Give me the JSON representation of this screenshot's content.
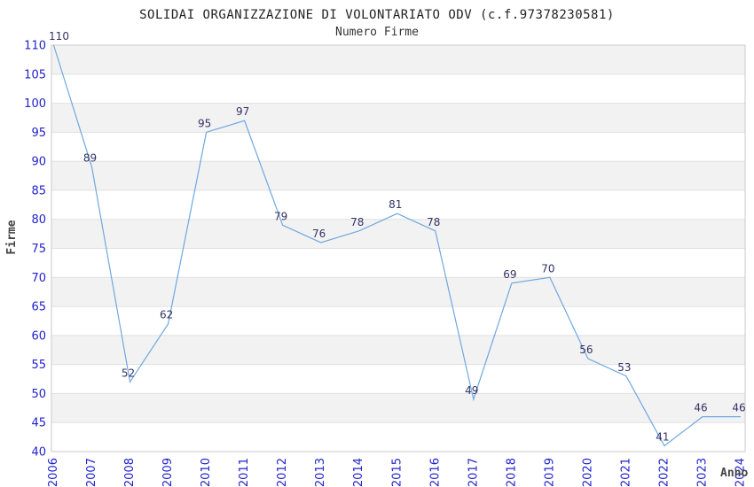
{
  "chart_data": {
    "type": "line",
    "title": "SOLIDAI ORGANIZZAZIONE DI VOLONTARIATO ODV (c.f.97378230581)",
    "subtitle": "Numero Firme",
    "xlabel": "Anno",
    "ylabel": "Firme",
    "categories": [
      "2006",
      "2007",
      "2008",
      "2009",
      "2010",
      "2011",
      "2012",
      "2013",
      "2014",
      "2015",
      "2016",
      "2017",
      "2018",
      "2019",
      "2020",
      "2021",
      "2022",
      "2023",
      "2024"
    ],
    "series": [
      {
        "name": "Numero Firme",
        "values": [
          110,
          89,
          52,
          62,
          95,
          97,
          79,
          76,
          78,
          81,
          78,
          49,
          69,
          70,
          56,
          53,
          41,
          46,
          46
        ]
      }
    ],
    "ylim": [
      40,
      110
    ],
    "ytick_step": 5,
    "grid": "horizontal",
    "banding": "alternating",
    "legend": "none",
    "colors": {
      "line": "#6FA8E0",
      "tick_label": "#2222CC",
      "data_label": "#333366",
      "band": "#F2F2F2",
      "gridline": "#E0E0E0",
      "plot_border": "#C9C9C9",
      "title": "#222222",
      "subtitle": "#333333",
      "axis_label": "#444444"
    }
  }
}
